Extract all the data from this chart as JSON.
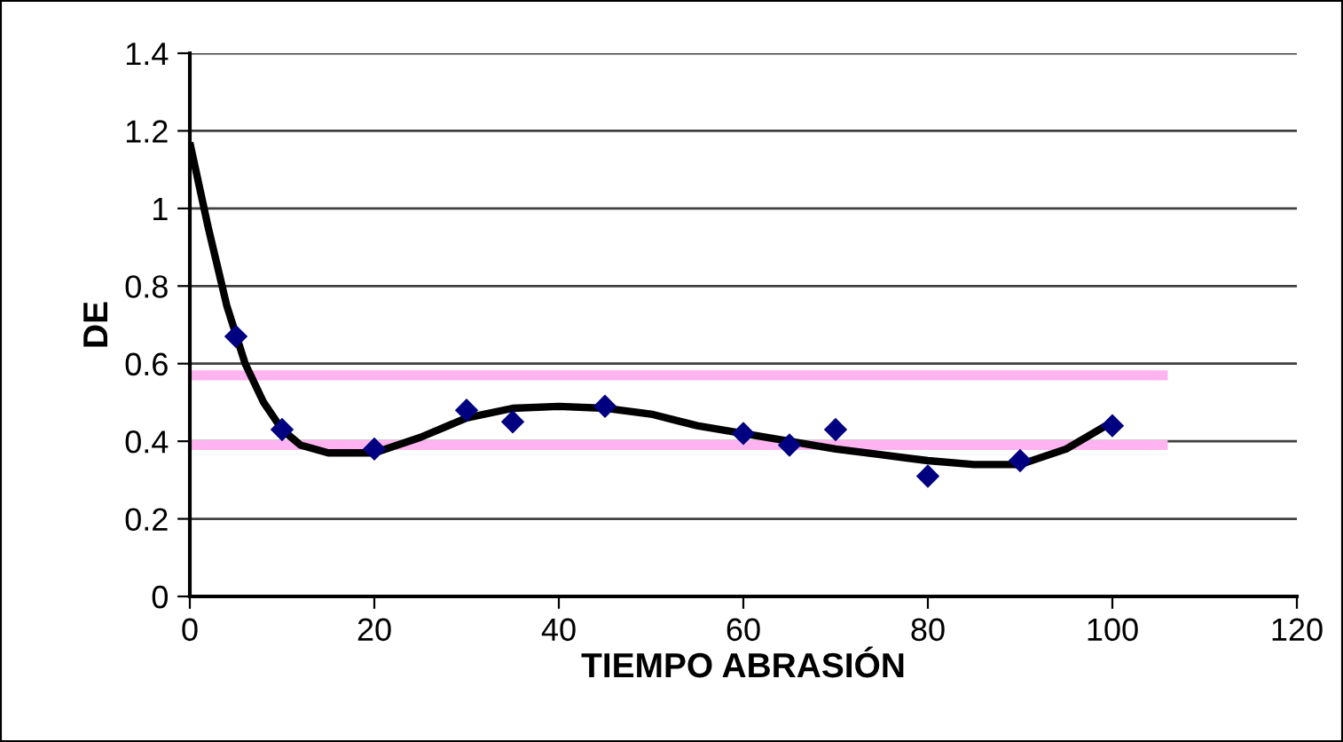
{
  "chart_data": {
    "type": "line",
    "xlabel": "TIEMPO ABRASIÓN",
    "ylabel": "DE",
    "xlim": [
      0,
      120
    ],
    "xticks": [
      0,
      20,
      40,
      60,
      80,
      100,
      120
    ],
    "ylim": [
      0,
      1.4
    ],
    "yticks": [
      0,
      0.2,
      0.4,
      0.6,
      0.8,
      1,
      1.2,
      1.4
    ],
    "grid": "y",
    "legend": false,
    "series": [
      {
        "color": "#ffb3f0",
        "marker": "none",
        "x": [
          0,
          106
        ],
        "values": [
          0.57,
          0.57
        ]
      },
      {
        "color": "#ffb3f0",
        "marker": "none",
        "x": [
          0,
          106
        ],
        "values": [
          0.39,
          0.39
        ]
      },
      {
        "type": "scatter",
        "marker": "diamond",
        "color": "#000080",
        "x": [
          5,
          10,
          20,
          30,
          35,
          45,
          60,
          65,
          70,
          80,
          90,
          100
        ],
        "values": [
          0.67,
          0.43,
          0.38,
          0.48,
          0.45,
          0.49,
          0.42,
          0.39,
          0.43,
          0.31,
          0.35,
          0.44
        ]
      },
      {
        "color": "#000000",
        "marker": "none",
        "x": [
          0,
          2,
          4,
          6,
          8,
          10,
          12,
          15,
          20,
          25,
          30,
          35,
          40,
          45,
          50,
          55,
          60,
          65,
          70,
          75,
          80,
          85,
          90,
          95,
          100
        ],
        "values": [
          1.17,
          0.95,
          0.75,
          0.6,
          0.5,
          0.43,
          0.39,
          0.37,
          0.37,
          0.41,
          0.46,
          0.485,
          0.49,
          0.485,
          0.47,
          0.44,
          0.42,
          0.4,
          0.38,
          0.365,
          0.35,
          0.34,
          0.34,
          0.38,
          0.45
        ]
      }
    ]
  }
}
